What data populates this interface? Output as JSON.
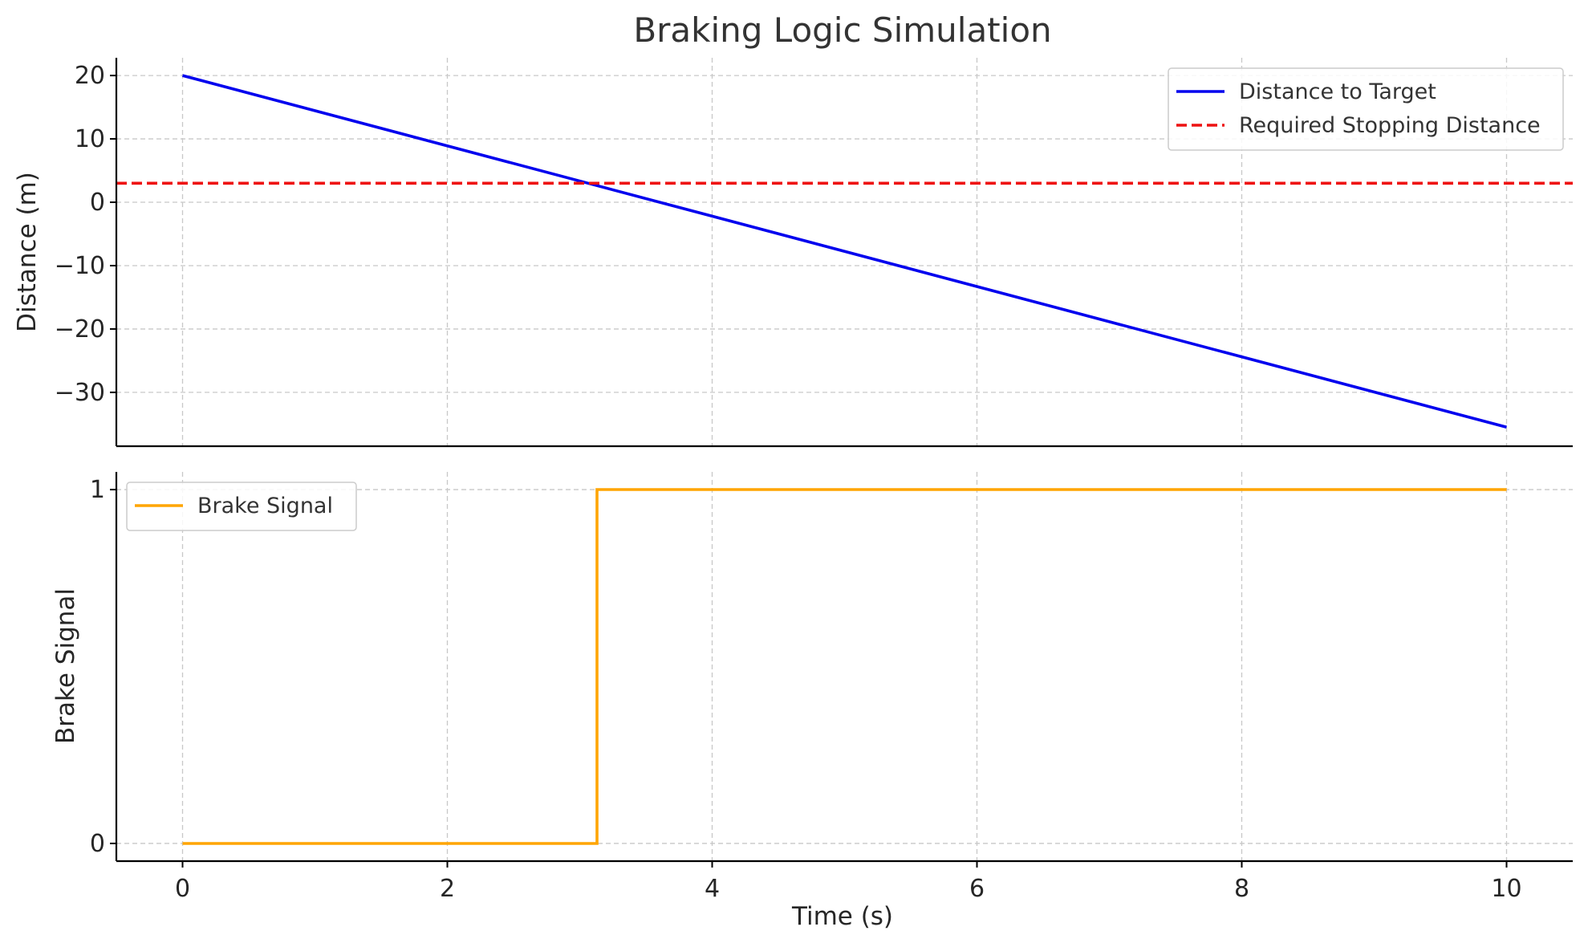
{
  "chart_data": {
    "type": "line",
    "title": "Braking Logic Simulation",
    "x": [
      0,
      3.12,
      3.13,
      10
    ],
    "xlabel": "Time (s)",
    "xlim": [
      -0.5,
      10.5
    ],
    "xticks": [
      0,
      2,
      4,
      6,
      8,
      10
    ],
    "grid": true,
    "panels": [
      {
        "ylabel": "Distance (m)",
        "ylim": [
          -38.5,
          22.8
        ],
        "yticks": [
          20,
          10,
          0,
          -10,
          -20,
          -30
        ],
        "ytick_labels": [
          "20",
          "10",
          "0",
          "−10",
          "−20",
          "−30"
        ],
        "legend": "top-right",
        "series": [
          {
            "name": "Distance to Target",
            "color": "#0000ee",
            "style": "solid",
            "x": [
              0,
              10
            ],
            "y": [
              20,
              -35.5
            ]
          },
          {
            "name": "Required Stopping Distance",
            "color": "#ee1111",
            "style": "dashed",
            "x": [
              -0.5,
              10.5
            ],
            "y": [
              3,
              3
            ]
          }
        ]
      },
      {
        "ylabel": "Brake Signal",
        "ylim": [
          -0.05,
          1.05
        ],
        "yticks": [
          1,
          0
        ],
        "ytick_labels": [
          "1",
          "0"
        ],
        "legend": "top-left",
        "series": [
          {
            "name": "Brake Signal",
            "color": "#ffa500",
            "style": "step",
            "x": [
              0,
              3.13,
              3.13,
              10
            ],
            "y": [
              0,
              0,
              1,
              1
            ]
          }
        ]
      }
    ]
  }
}
